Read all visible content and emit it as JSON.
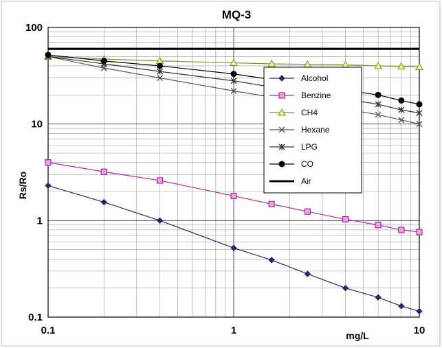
{
  "chart_data": {
    "type": "line",
    "title": "MQ-3",
    "xlabel": "mg/L",
    "ylabel": "Rs/Ro",
    "x_scale": "log",
    "y_scale": "log",
    "xlim": [
      0.1,
      10
    ],
    "ylim": [
      0.1,
      100
    ],
    "x_ticks": [
      "0.1",
      "1",
      "10"
    ],
    "y_ticks": [
      "0.1",
      "1",
      "10",
      "100"
    ],
    "grid": true,
    "legend_position": "top-right",
    "series": [
      {
        "name": "Alcohol",
        "marker": "diamond",
        "color": "#1f2a6b",
        "x": [
          0.1,
          0.2,
          0.4,
          1,
          1.6,
          2.5,
          4,
          6,
          8,
          10
        ],
        "y": [
          2.3,
          1.55,
          1.0,
          0.52,
          0.39,
          0.28,
          0.2,
          0.16,
          0.13,
          0.115
        ]
      },
      {
        "name": "Benzine",
        "marker": "square",
        "color": "#b0269e",
        "x": [
          0.1,
          0.2,
          0.4,
          1,
          1.6,
          2.5,
          4,
          6,
          8,
          10
        ],
        "y": [
          4.0,
          3.2,
          2.6,
          1.8,
          1.48,
          1.24,
          1.03,
          0.9,
          0.8,
          0.76
        ]
      },
      {
        "name": "CH4",
        "marker": "triangle",
        "color": "#8a8a2a",
        "x": [
          0.1,
          0.2,
          0.4,
          1,
          1.6,
          2.5,
          4,
          6,
          8,
          10
        ],
        "y": [
          50,
          47,
          45,
          43,
          42,
          41.5,
          41,
          40,
          39.5,
          39
        ]
      },
      {
        "name": "Hexane",
        "marker": "x",
        "color": "#555555",
        "x": [
          0.1,
          0.2,
          0.4,
          1,
          6,
          8,
          10
        ],
        "y": [
          50,
          38,
          30,
          22,
          12.5,
          11,
          10
        ]
      },
      {
        "name": "LPG",
        "marker": "star",
        "color": "#333333",
        "x": [
          0.1,
          0.2,
          0.4,
          1,
          6,
          8,
          10
        ],
        "y": [
          50,
          42,
          35,
          28,
          16,
          14,
          13
        ]
      },
      {
        "name": "CO",
        "marker": "circle",
        "color": "#000000",
        "x": [
          0.1,
          0.2,
          0.4,
          1,
          6,
          8,
          10
        ],
        "y": [
          52,
          45,
          40,
          33,
          20,
          17.5,
          16
        ]
      },
      {
        "name": "Air",
        "marker": "none",
        "color": "#000000",
        "x": [
          0.1,
          10
        ],
        "y": [
          60,
          60
        ]
      }
    ]
  }
}
